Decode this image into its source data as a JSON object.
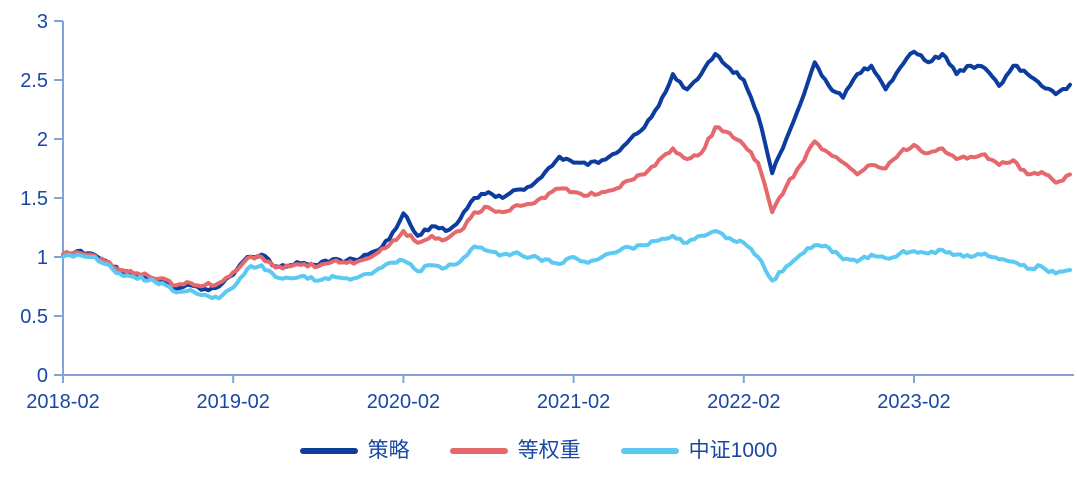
{
  "chart_data": {
    "type": "line",
    "title": "",
    "xlabel": "",
    "ylabel": "",
    "ylim": [
      0,
      3
    ],
    "y_ticks": [
      0,
      0.5,
      1,
      1.5,
      2,
      2.5,
      3
    ],
    "x_tick_labels": [
      "2018-02",
      "2019-02",
      "2020-02",
      "2021-02",
      "2022-02",
      "2023-02"
    ],
    "x_tick_indices": [
      0,
      12,
      24,
      36,
      48,
      60
    ],
    "grid": false,
    "legend_position": "bottom",
    "axis_color": "#7FA3DA",
    "label_color": "#1A47A6",
    "categories": [
      "2018-02",
      "2018-03",
      "2018-04",
      "2018-05",
      "2018-06",
      "2018-07",
      "2018-08",
      "2018-09",
      "2018-10",
      "2018-11",
      "2018-12",
      "2019-01",
      "2019-02",
      "2019-03",
      "2019-04",
      "2019-05",
      "2019-06",
      "2019-07",
      "2019-08",
      "2019-09",
      "2019-10",
      "2019-11",
      "2019-12",
      "2020-01",
      "2020-02",
      "2020-03",
      "2020-04",
      "2020-05",
      "2020-06",
      "2020-07",
      "2020-08",
      "2020-09",
      "2020-10",
      "2020-11",
      "2020-12",
      "2021-01",
      "2021-02",
      "2021-03",
      "2021-04",
      "2021-05",
      "2021-06",
      "2021-07",
      "2021-08",
      "2021-09",
      "2021-10",
      "2021-11",
      "2021-12",
      "2022-01",
      "2022-02",
      "2022-03",
      "2022-04",
      "2022-05",
      "2022-06",
      "2022-07",
      "2022-08",
      "2022-09",
      "2022-10",
      "2022-11",
      "2022-12",
      "2023-01",
      "2023-02",
      "2023-03",
      "2023-04",
      "2023-05",
      "2023-06",
      "2023-07",
      "2023-08",
      "2023-09",
      "2023-10",
      "2023-11",
      "2023-12",
      "2024-01"
    ],
    "series": [
      {
        "name": "策略",
        "color": "#0C3C9E",
        "values": [
          1.02,
          1.05,
          1.03,
          0.97,
          0.88,
          0.85,
          0.82,
          0.8,
          0.73,
          0.76,
          0.73,
          0.75,
          0.85,
          1.0,
          1.02,
          0.92,
          0.93,
          0.95,
          0.93,
          0.98,
          0.97,
          0.99,
          1.05,
          1.15,
          1.37,
          1.18,
          1.26,
          1.22,
          1.32,
          1.5,
          1.55,
          1.5,
          1.57,
          1.6,
          1.72,
          1.85,
          1.8,
          1.78,
          1.82,
          1.88,
          2.0,
          2.1,
          2.28,
          2.55,
          2.42,
          2.55,
          2.72,
          2.6,
          2.5,
          2.2,
          1.71,
          2.0,
          2.3,
          2.65,
          2.45,
          2.35,
          2.55,
          2.62,
          2.42,
          2.6,
          2.74,
          2.65,
          2.72,
          2.55,
          2.62,
          2.6,
          2.45,
          2.62,
          2.55,
          2.45,
          2.38,
          2.46
        ]
      },
      {
        "name": "等权重",
        "color": "#E4686C",
        "values": [
          1.02,
          1.04,
          1.02,
          0.96,
          0.89,
          0.86,
          0.84,
          0.82,
          0.76,
          0.78,
          0.76,
          0.78,
          0.87,
          0.99,
          1.0,
          0.91,
          0.92,
          0.94,
          0.92,
          0.96,
          0.95,
          0.97,
          1.02,
          1.1,
          1.22,
          1.12,
          1.18,
          1.15,
          1.22,
          1.38,
          1.42,
          1.38,
          1.44,
          1.45,
          1.5,
          1.58,
          1.55,
          1.52,
          1.55,
          1.58,
          1.65,
          1.7,
          1.82,
          1.92,
          1.83,
          1.88,
          2.1,
          2.05,
          1.95,
          1.8,
          1.38,
          1.6,
          1.78,
          1.98,
          1.88,
          1.8,
          1.7,
          1.78,
          1.75,
          1.88,
          1.95,
          1.88,
          1.92,
          1.83,
          1.85,
          1.87,
          1.78,
          1.82,
          1.7,
          1.72,
          1.63,
          1.7
        ]
      },
      {
        "name": "中证1000",
        "color": "#5CC9F2",
        "values": [
          1.0,
          1.02,
          1.0,
          0.94,
          0.86,
          0.83,
          0.8,
          0.78,
          0.7,
          0.72,
          0.68,
          0.65,
          0.74,
          0.9,
          0.93,
          0.83,
          0.82,
          0.84,
          0.8,
          0.84,
          0.82,
          0.84,
          0.88,
          0.95,
          0.97,
          0.88,
          0.93,
          0.91,
          0.96,
          1.09,
          1.05,
          1.02,
          1.04,
          1.0,
          0.98,
          0.94,
          1.0,
          0.95,
          1.0,
          1.04,
          1.08,
          1.1,
          1.14,
          1.18,
          1.12,
          1.18,
          1.22,
          1.16,
          1.12,
          1.0,
          0.8,
          0.92,
          1.02,
          1.1,
          1.08,
          0.98,
          0.96,
          1.02,
          0.99,
          1.03,
          1.05,
          1.03,
          1.06,
          1.02,
          1.0,
          1.03,
          0.98,
          0.96,
          0.9,
          0.92,
          0.86,
          0.89
        ]
      }
    ]
  }
}
